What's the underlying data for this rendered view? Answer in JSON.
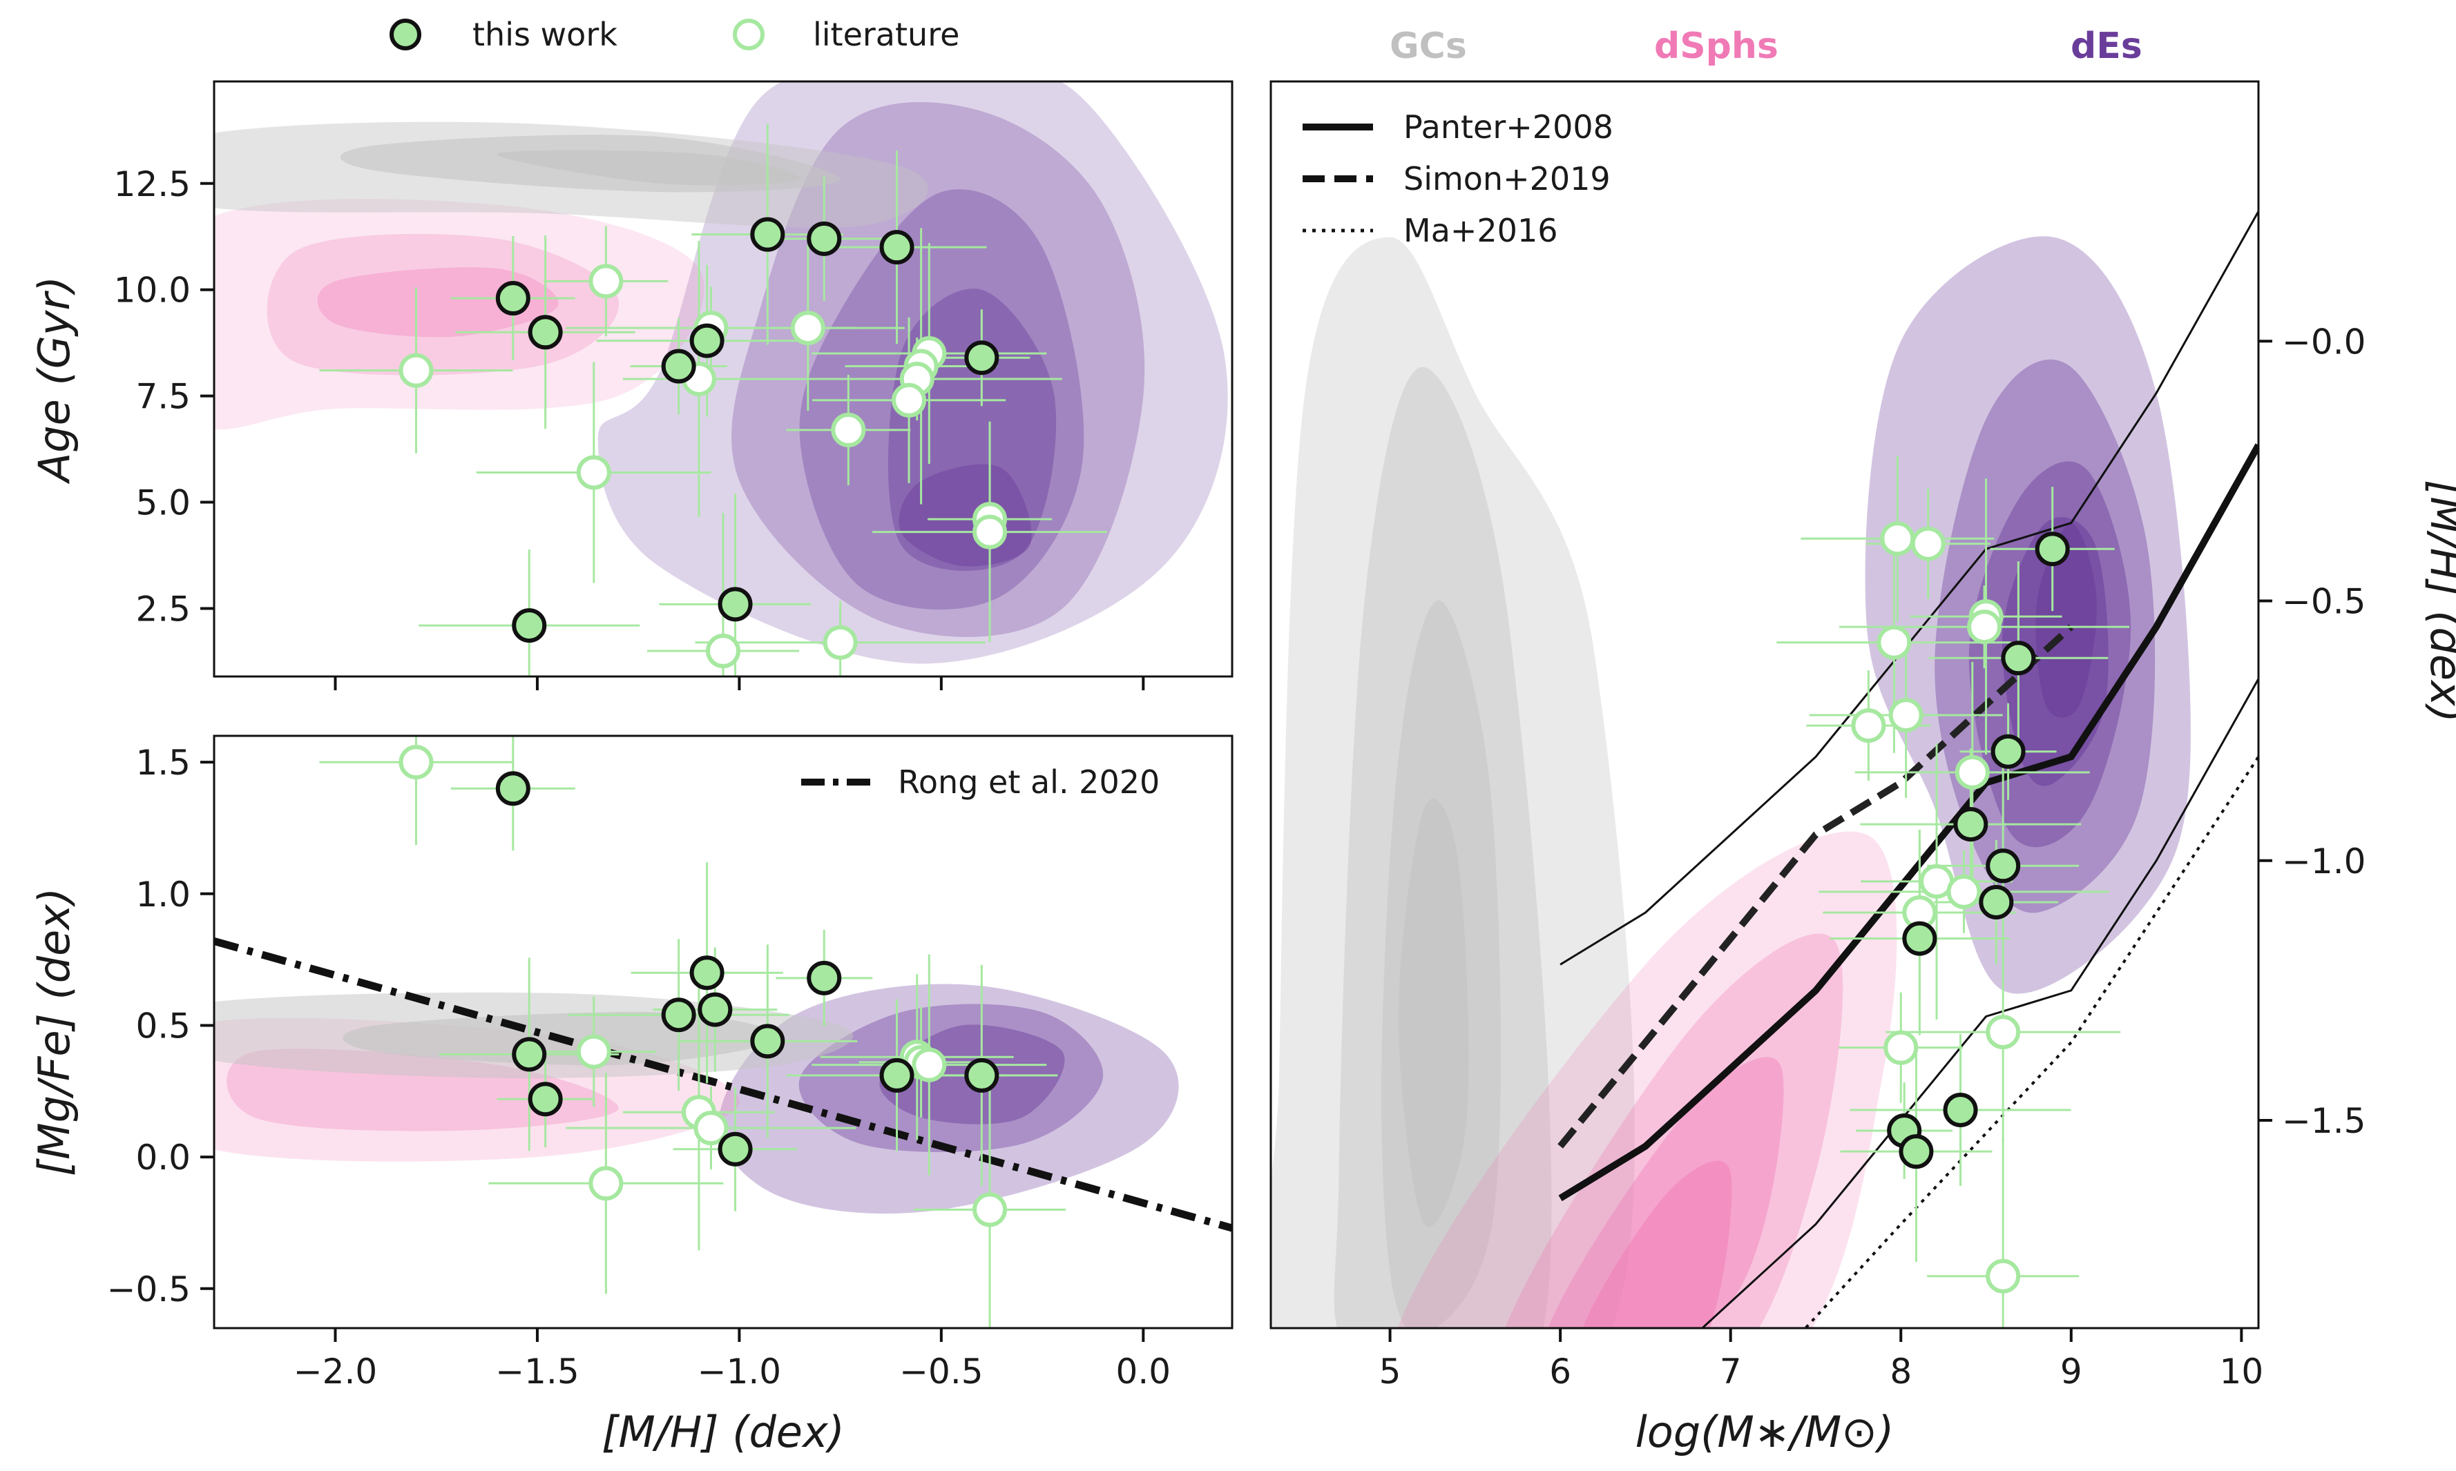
{
  "chart_data": [
    {
      "type": "scatter",
      "title": "",
      "xlabel": "[M/H] (dex)",
      "ylabel": "Age (Gyr)",
      "xlim": [
        -2.3,
        0.22
      ],
      "ylim": [
        0.9,
        14.9
      ],
      "xticks": [
        -2.0,
        -1.5,
        -1.0,
        -0.5,
        0.0
      ],
      "yticks": [
        2.5,
        5.0,
        7.5,
        10.0,
        12.5
      ],
      "yticklabels": [
        "2.5",
        "5.0",
        "7.5",
        "10.0",
        "12.5"
      ],
      "series": [
        {
          "name": "this work",
          "x": [
            -1.56,
            -1.48,
            -1.15,
            -1.08,
            -0.93,
            -0.79,
            -0.61,
            -0.4,
            -1.52,
            -1.01
          ],
          "y": [
            9.8,
            9.0,
            8.2,
            8.8,
            11.3,
            11.2,
            11.0,
            8.4,
            2.1,
            2.6
          ]
        },
        {
          "name": "literature",
          "x": [
            -1.8,
            -1.33,
            -1.36,
            -1.1,
            -1.07,
            -0.83,
            -0.73,
            -0.53,
            -0.55,
            -0.56,
            -0.58,
            -0.38,
            -0.38,
            -1.04,
            -0.75
          ],
          "y": [
            8.1,
            10.2,
            5.7,
            7.9,
            9.1,
            9.1,
            6.7,
            8.5,
            8.2,
            7.9,
            7.4,
            4.6,
            4.3,
            1.5,
            1.7
          ]
        }
      ],
      "contours": [
        "GCs",
        "dSphs",
        "dEs"
      ]
    },
    {
      "type": "scatter",
      "title": "",
      "xlabel": "[M/H] (dex)",
      "ylabel": "[Mg/Fe] (dex)",
      "xlim": [
        -2.3,
        0.22
      ],
      "ylim": [
        -0.65,
        1.6
      ],
      "xticks": [
        -2.0,
        -1.5,
        -1.0,
        -0.5,
        0.0
      ],
      "xticklabels": [
        "−2.0",
        "−1.5",
        "−1.0",
        "−0.5",
        "0.0"
      ],
      "yticks": [
        -0.5,
        0.0,
        0.5,
        1.0,
        1.5
      ],
      "yticklabels": [
        "−0.5",
        "0.0",
        "0.5",
        "1.0",
        "1.5"
      ],
      "series": [
        {
          "name": "this work",
          "x": [
            -1.56,
            -1.52,
            -1.48,
            -1.15,
            -1.08,
            -1.06,
            -0.93,
            -0.79,
            -0.61,
            -0.4,
            -1.01
          ],
          "y": [
            1.4,
            0.39,
            0.22,
            0.54,
            0.7,
            0.56,
            0.44,
            0.68,
            0.31,
            0.31,
            0.03
          ]
        },
        {
          "name": "literature",
          "x": [
            -1.8,
            -1.36,
            -1.33,
            -1.1,
            -1.07,
            -0.56,
            -0.55,
            -0.53,
            -0.38
          ],
          "y": [
            1.5,
            0.4,
            -0.1,
            0.17,
            0.11,
            0.38,
            0.36,
            0.35,
            -0.2
          ]
        },
        {
          "name": "Rong et al. 2020",
          "kind": "line",
          "x": [
            -2.3,
            0.22
          ],
          "y": [
            0.82,
            -0.27
          ]
        }
      ],
      "contours": [
        "GCs",
        "dSphs",
        "dEs"
      ]
    },
    {
      "type": "scatter",
      "title": "",
      "xlabel": "log(M∗/M⊙)",
      "ylabel": "[M/H] (dex)",
      "xlim": [
        4.3,
        10.1
      ],
      "ylim": [
        -1.9,
        0.5
      ],
      "xticks": [
        5,
        6,
        7,
        8,
        9,
        10
      ],
      "yticks": [
        -1.5,
        -1.0,
        -0.5,
        0.0
      ],
      "yticklabels": [
        "−1.5",
        "−1.0",
        "−0.5",
        "−0.0"
      ],
      "series": [
        {
          "name": "this work",
          "x": [
            8.89,
            8.69,
            8.63,
            8.41,
            8.6,
            8.56,
            8.11,
            8.02,
            8.35,
            8.09
          ],
          "y": [
            -0.4,
            -0.61,
            -0.79,
            -0.93,
            -1.01,
            -1.08,
            -1.15,
            -1.52,
            -1.48,
            -1.56
          ]
        },
        {
          "name": "literature",
          "x": [
            7.98,
            8.16,
            7.96,
            8.5,
            8.49,
            8.03,
            7.81,
            8.42,
            8.21,
            8.37,
            8.11,
            8.0,
            8.6,
            8.6
          ],
          "y": [
            -0.38,
            -0.39,
            -0.58,
            -0.53,
            -0.55,
            -0.72,
            -0.74,
            -0.83,
            -1.04,
            -1.06,
            -1.1,
            -1.36,
            -1.33,
            -1.8
          ]
        },
        {
          "name": "Panter+2008",
          "kind": "line",
          "x": [
            6.0,
            6.5,
            7.0,
            7.5,
            8.0,
            8.5,
            9.0,
            9.5,
            10.1
          ],
          "y": [
            -1.65,
            -1.55,
            -1.4,
            -1.25,
            -1.05,
            -0.85,
            -0.8,
            -0.55,
            -0.2
          ]
        },
        {
          "name": "Simon+2019",
          "kind": "line",
          "x": [
            6.0,
            6.5,
            7.0,
            7.5,
            8.0,
            8.5,
            9.0
          ],
          "y": [
            -1.55,
            -1.35,
            -1.15,
            -0.95,
            -0.85,
            -0.7,
            -0.55
          ]
        },
        {
          "name": "Ma+2016",
          "kind": "line",
          "x": [
            7.3,
            8.0,
            9.0,
            10.1
          ],
          "y": [
            -1.95,
            -1.7,
            -1.35,
            -0.8
          ]
        }
      ],
      "contours": [
        "GCs",
        "dSphs",
        "dEs"
      ]
    }
  ],
  "legend_top": {
    "this_work": "this work",
    "literature": "literature"
  },
  "legend_rong": "Rong et al. 2020",
  "legend_right": {
    "panter": "Panter+2008",
    "simon": "Simon+2019",
    "ma": "Ma+2016"
  },
  "group_headers": {
    "gcs": "GCs",
    "dsphs": "dSphs",
    "des": "dEs"
  },
  "colors": {
    "this_work_fill": "#a6e8a0",
    "literature_edge": "#a6e8a0",
    "errorbar": "#a6e8a0",
    "gcs": "#c4c4c4",
    "dsphs": "#f07ab6",
    "des": "#6a3d9a",
    "gcs_header": "#c0c0c0",
    "dsphs_header": "#f07ab6",
    "des_header": "#6a3d9a"
  }
}
